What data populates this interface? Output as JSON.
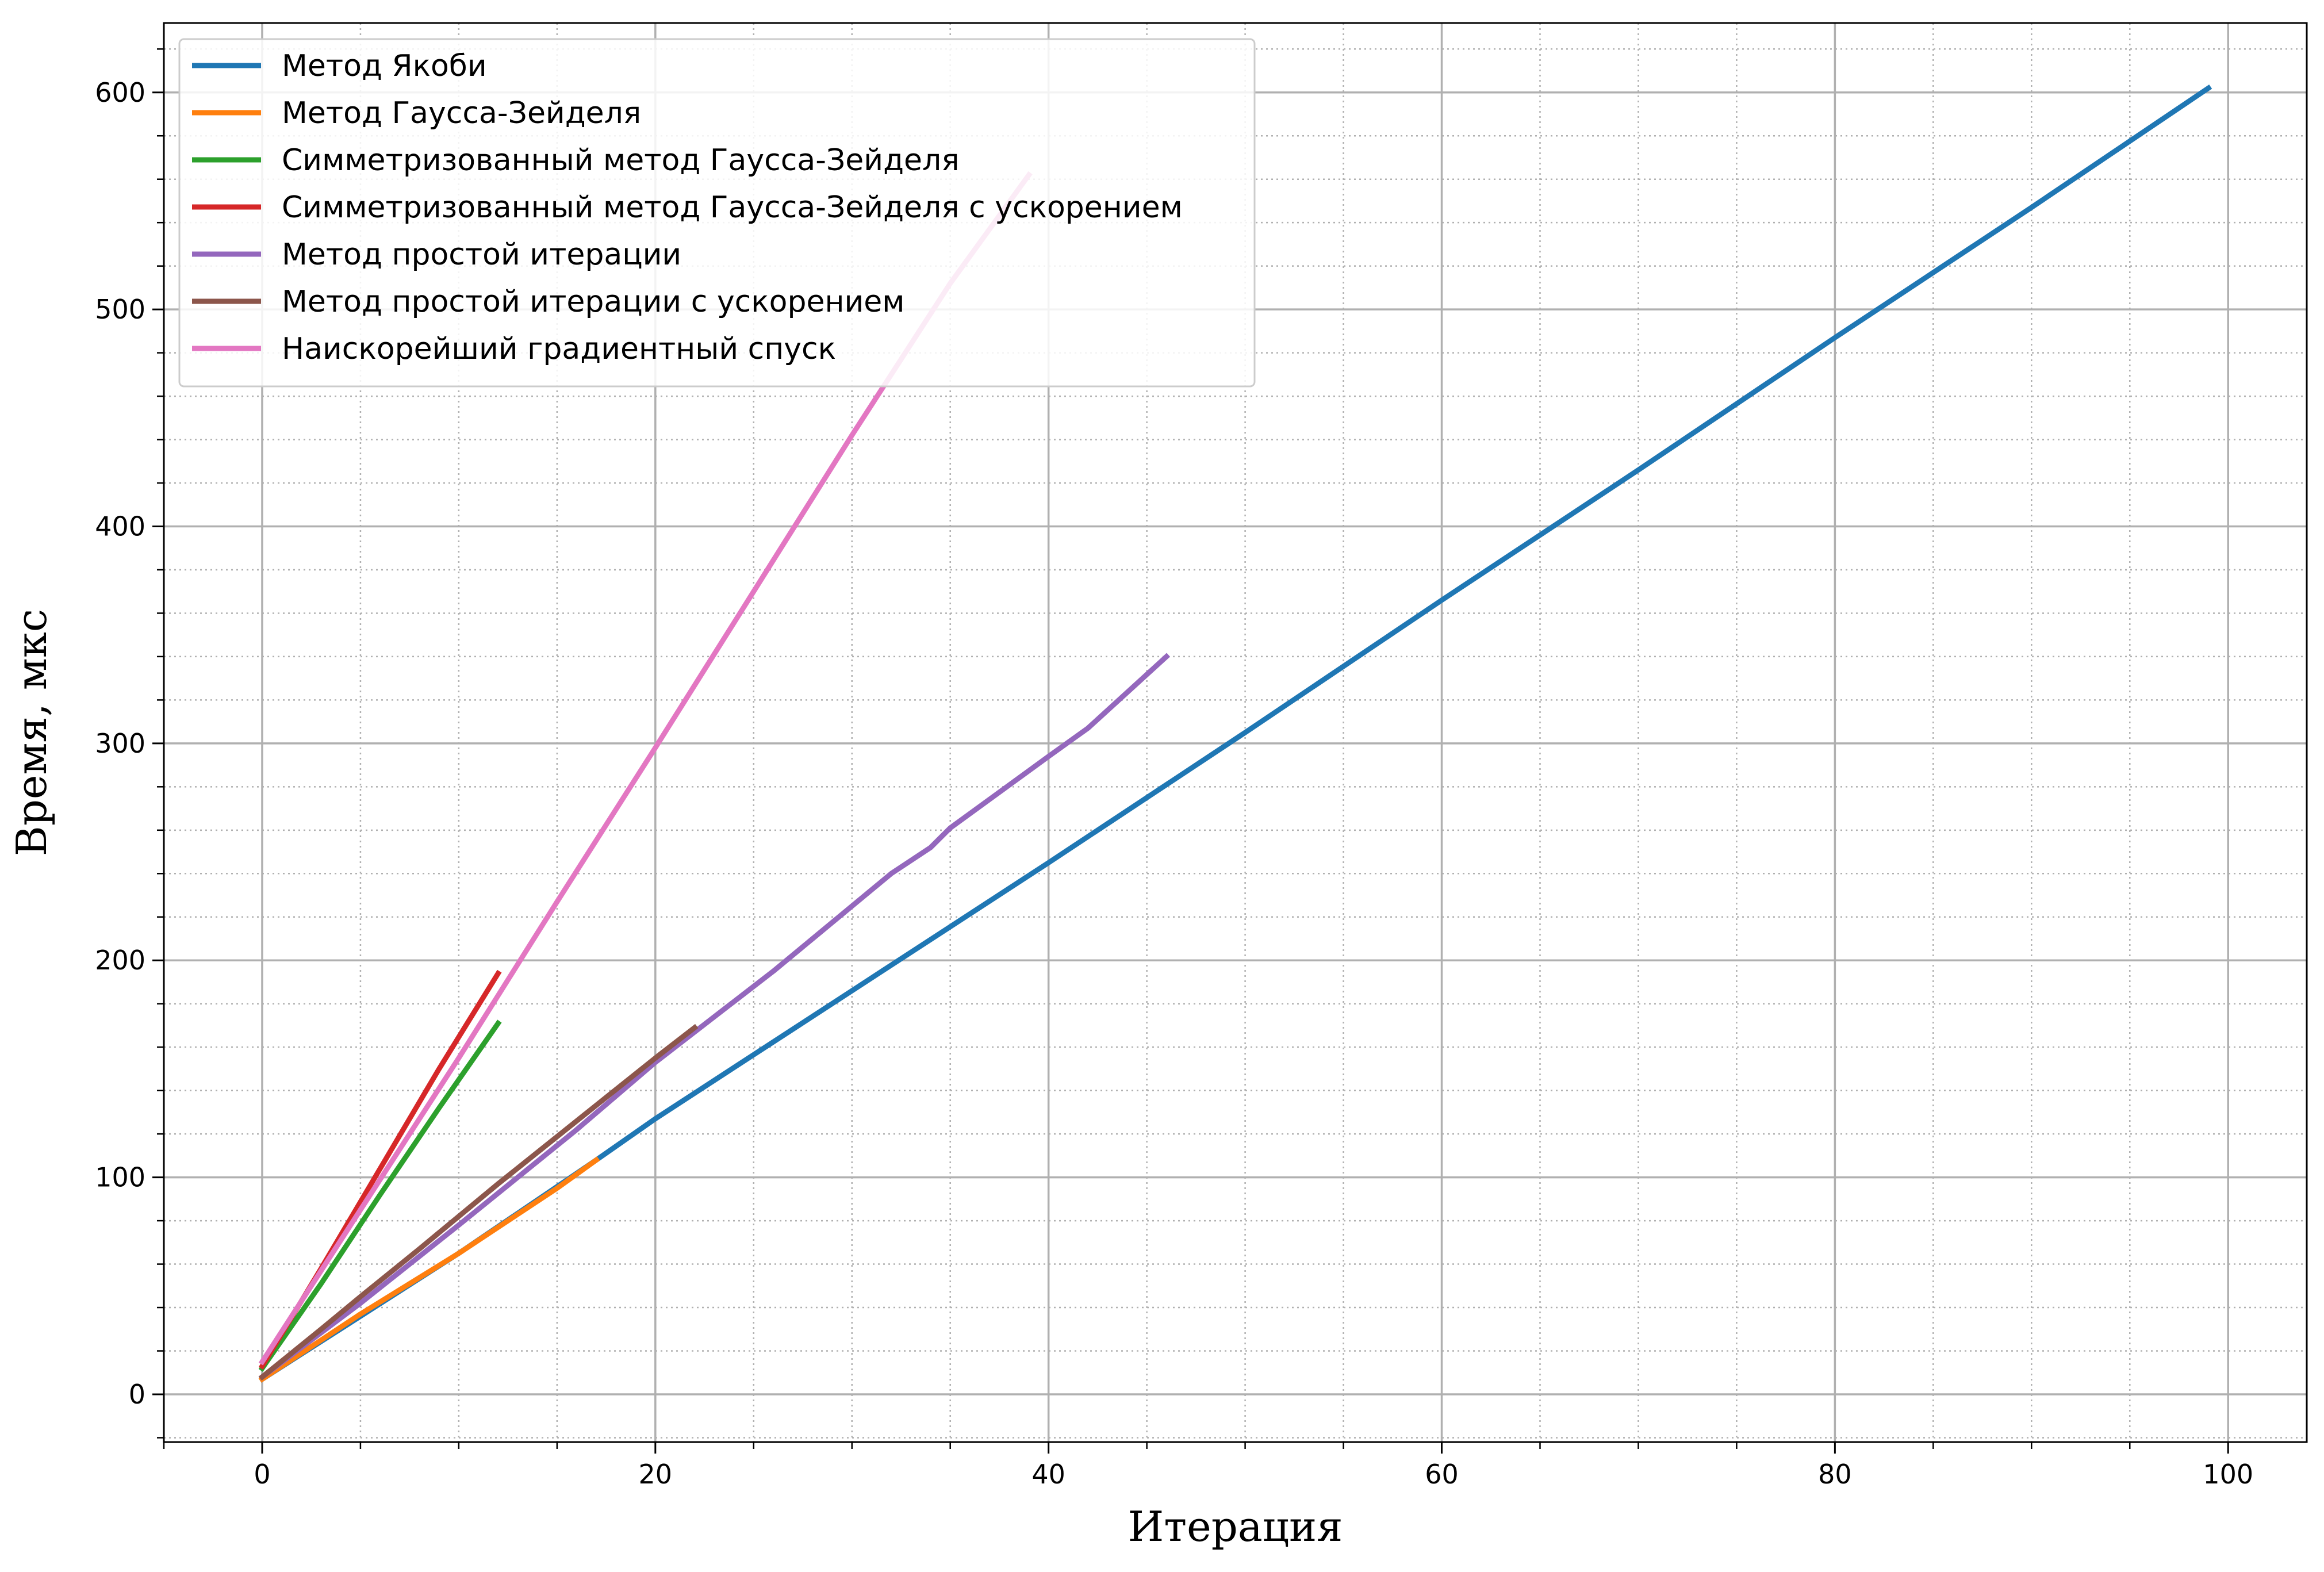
{
  "chart_data": {
    "type": "line",
    "title": "",
    "xlabel": "Итерация",
    "ylabel": "Время, мкс",
    "xlim": [
      -5,
      104
    ],
    "ylim": [
      -22,
      632
    ],
    "xticks": [
      0,
      20,
      40,
      60,
      80,
      100
    ],
    "yticks": [
      0,
      100,
      200,
      300,
      400,
      500,
      600
    ],
    "x_minor_step": 5,
    "y_minor_step": 20,
    "grid": {
      "major": true,
      "minor": true,
      "major_color": "#b0b0b0",
      "minor_color": "#b0b0b0"
    },
    "legend_position": "top-left",
    "series": [
      {
        "name": "Метод Якоби",
        "color": "#1f77b4",
        "x": [
          0,
          10,
          17,
          20,
          30,
          40,
          50,
          60,
          70,
          80,
          90,
          99
        ],
        "y": [
          7,
          65,
          108,
          127,
          186,
          245,
          305,
          366,
          426,
          487,
          547,
          602
        ]
      },
      {
        "name": "Метод Гаусса-Зейделя",
        "color": "#ff7f0e",
        "x": [
          0,
          5,
          10,
          15,
          17
        ],
        "y": [
          7,
          37,
          65,
          95,
          108
        ]
      },
      {
        "name": "Симметризованный метод Гаусса-Зейделя",
        "color": "#2ca02c",
        "x": [
          0,
          3,
          6,
          9,
          12
        ],
        "y": [
          12,
          51,
          92,
          132,
          171
        ]
      },
      {
        "name": "Симметризованный метод Гаусса-Зейделя с ускорением",
        "color": "#d62728",
        "x": [
          0,
          3,
          6,
          9,
          12
        ],
        "y": [
          13,
          58,
          104,
          150,
          194
        ]
      },
      {
        "name": "Метод простой итерации",
        "color": "#9467bd",
        "x": [
          0,
          5,
          10,
          16,
          20,
          24,
          26,
          28,
          32,
          34,
          35,
          40,
          42,
          46
        ],
        "y": [
          8,
          42,
          78,
          122,
          153,
          181,
          195,
          210,
          240,
          252,
          261,
          294,
          307,
          340
        ]
      },
      {
        "name": "Метод простой итерации с ускорением",
        "color": "#8c564b",
        "x": [
          0,
          3,
          5,
          8,
          12,
          16,
          20,
          22
        ],
        "y": [
          8,
          30,
          45,
          67,
          97,
          126,
          155,
          169
        ]
      },
      {
        "name": "Наискорейший градиентный спуск",
        "color": "#e377c2",
        "x": [
          0,
          5,
          10,
          15,
          20,
          25,
          30,
          35,
          39
        ],
        "y": [
          15,
          85,
          155,
          227,
          298,
          370,
          442,
          512,
          562
        ]
      }
    ]
  }
}
